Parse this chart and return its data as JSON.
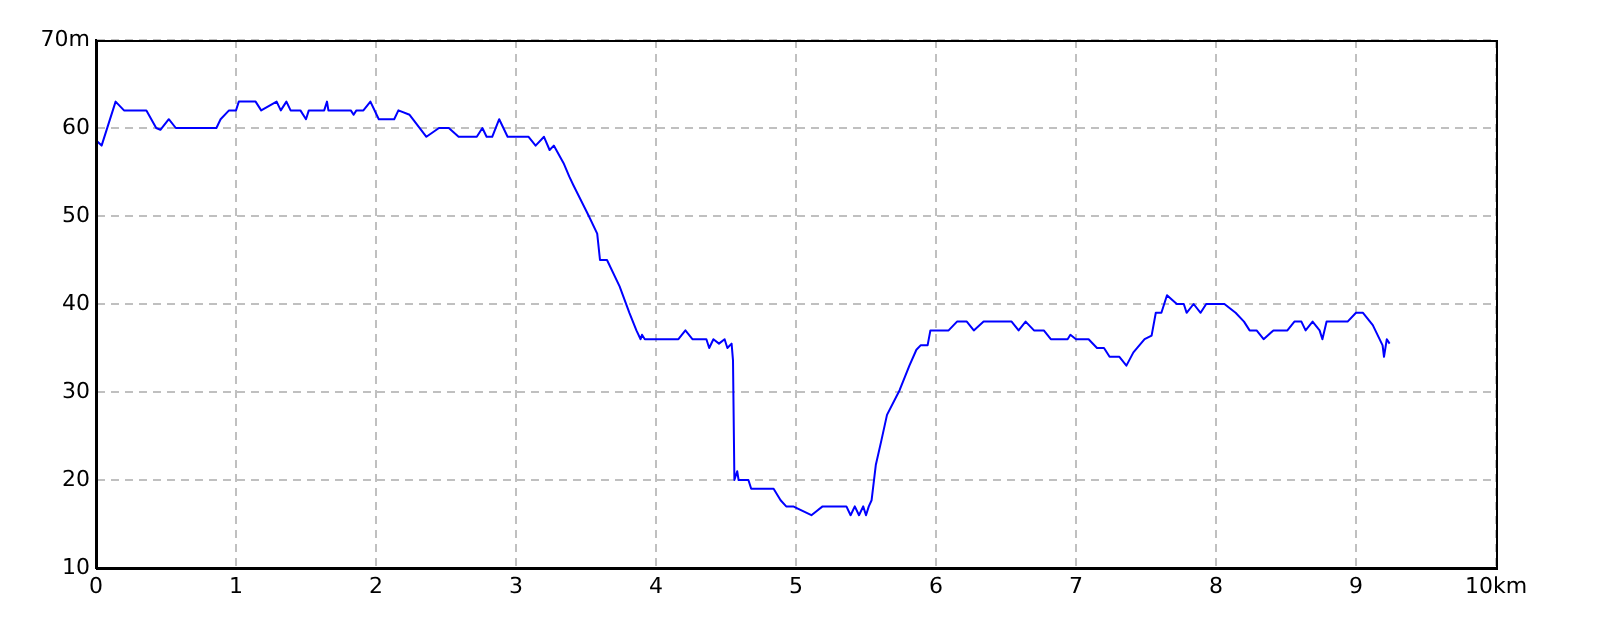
{
  "chart_data": {
    "type": "line",
    "grid": true,
    "marker": "none",
    "line_style": "solid",
    "xlim": [
      0,
      10
    ],
    "xticks": [
      0,
      1,
      2,
      3,
      4,
      5,
      6,
      7,
      8,
      9,
      {
        "value": 10,
        "label": "10km"
      }
    ],
    "ylim": [
      10,
      70
    ],
    "yticks": [
      10,
      20,
      30,
      40,
      50,
      {
        "value": 60,
        "label": "60"
      },
      {
        "value": 70,
        "label": "70m"
      }
    ],
    "series": [
      {
        "color": "#0000ff",
        "x": [
          0,
          0.04,
          0.14,
          0.2,
          0.36,
          0.43,
          0.46,
          0.52,
          0.57,
          0.86,
          0.89,
          0.95,
          1.0,
          1.02,
          1.14,
          1.18,
          1.29,
          1.32,
          1.36,
          1.39,
          1.46,
          1.5,
          1.52,
          1.63,
          1.65,
          1.66,
          1.82,
          1.84,
          1.86,
          1.91,
          1.96,
          2.02,
          2.13,
          2.16,
          2.24,
          2.36,
          2.45,
          2.52,
          2.59,
          2.72,
          2.76,
          2.79,
          2.83,
          2.88,
          2.94,
          3.09,
          3.14,
          3.2,
          3.24,
          3.27,
          3.34,
          3.38,
          3.41,
          3.52,
          3.58,
          3.6,
          3.65,
          3.74,
          3.81,
          3.86,
          3.89,
          3.9,
          3.92,
          4.16,
          4.21,
          4.26,
          4.36,
          4.38,
          4.41,
          4.45,
          4.49,
          4.51,
          4.54,
          4.55,
          4.56,
          4.58,
          4.59,
          4.66,
          4.68,
          4.84,
          4.89,
          4.93,
          4.98,
          5.11,
          5.19,
          5.36,
          5.39,
          5.42,
          5.45,
          5.48,
          5.5,
          5.52,
          5.54,
          5.57,
          5.61,
          5.65,
          5.74,
          5.81,
          5.86,
          5.89,
          5.94,
          5.96,
          6.09,
          6.15,
          6.22,
          6.27,
          6.34,
          6.54,
          6.59,
          6.64,
          6.7,
          6.77,
          6.82,
          6.94,
          6.96,
          7.0,
          7.09,
          7.15,
          7.2,
          7.24,
          7.31,
          7.36,
          7.41,
          7.49,
          7.54,
          7.57,
          7.61,
          7.65,
          7.72,
          7.77,
          7.79,
          7.84,
          7.89,
          7.93,
          8.02,
          8.06,
          8.14,
          8.2,
          8.24,
          8.29,
          8.34,
          8.41,
          8.51,
          8.56,
          8.61,
          8.64,
          8.69,
          8.74,
          8.76,
          8.79,
          8.94,
          9.0,
          9.05,
          9.12,
          9.19,
          9.2,
          9.22,
          9.24
        ],
        "values": [
          58.6,
          58,
          63,
          62,
          62,
          60,
          59.8,
          61,
          60,
          60,
          61,
          62,
          62,
          63,
          63,
          62,
          63,
          62,
          63,
          62,
          62,
          61,
          62,
          62,
          63,
          62,
          62,
          61.5,
          62,
          62,
          63,
          61,
          61,
          62,
          61.5,
          59,
          60,
          60,
          59,
          59,
          60,
          59,
          59,
          61,
          59,
          59,
          58,
          59,
          57.5,
          58,
          56,
          54.5,
          53.5,
          50,
          48,
          45,
          45,
          42,
          39,
          37,
          36,
          36.5,
          36,
          36,
          37,
          36,
          36,
          35,
          36,
          35.5,
          36,
          35,
          35.5,
          33.6,
          20,
          21,
          20,
          20,
          19,
          19,
          17.7,
          17,
          17,
          16,
          17,
          17,
          16,
          17,
          16,
          17,
          16,
          17,
          17.7,
          21.7,
          24.5,
          27.4,
          30.2,
          33,
          34.8,
          35.3,
          35.3,
          37,
          37,
          38,
          38,
          37,
          38,
          38,
          37,
          38,
          37,
          37,
          36,
          36,
          36.5,
          36,
          36,
          35,
          35,
          34,
          34,
          33,
          34.5,
          36,
          36.4,
          39,
          39,
          41,
          40,
          40,
          39,
          40,
          39,
          40,
          40,
          40,
          39,
          38,
          37,
          37,
          36,
          37,
          37,
          38,
          38,
          37,
          38,
          37,
          36,
          38,
          38,
          39,
          39,
          37.6,
          35.3,
          34,
          36,
          35.5
        ]
      }
    ]
  }
}
